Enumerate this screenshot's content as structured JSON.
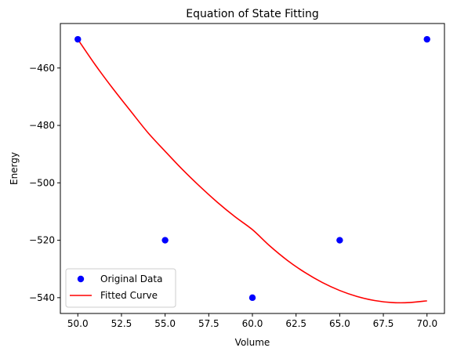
{
  "chart_data": {
    "type": "scatter",
    "title": "Equation of State Fitting",
    "xlabel": "Volume",
    "ylabel": "Energy",
    "xlim": [
      49.0,
      71.0
    ],
    "ylim": [
      -545.5,
      -444.5
    ],
    "xticks": [
      50.0,
      52.5,
      55.0,
      57.5,
      60.0,
      62.5,
      65.0,
      67.5,
      70.0
    ],
    "xtick_labels": [
      "50.0",
      "52.5",
      "55.0",
      "57.5",
      "60.0",
      "62.5",
      "65.0",
      "67.5",
      "70.0"
    ],
    "yticks": [
      -460,
      -480,
      -500,
      -520,
      -540
    ],
    "ytick_labels": [
      "−460",
      "−480",
      "−500",
      "−520",
      "−540"
    ],
    "grid": false,
    "legend_position": "lower-left",
    "series": [
      {
        "name": "Original Data",
        "kind": "points",
        "color": "#0000ff",
        "x": [
          50,
          55,
          60,
          65,
          70
        ],
        "y": [
          -450,
          -520,
          -540,
          -520,
          -450
        ]
      },
      {
        "name": "Fitted Curve",
        "kind": "line",
        "color": "#ff0000",
        "x": [
          50,
          51,
          52,
          53,
          54,
          55,
          56,
          57,
          58,
          59,
          60,
          61,
          62,
          63,
          64,
          65,
          66,
          67,
          68,
          69,
          70
        ],
        "y": [
          -450.0,
          -458.9,
          -467.1,
          -474.8,
          -482.4,
          -489.0,
          -495.4,
          -501.3,
          -506.8,
          -511.8,
          -516.3,
          -522.0,
          -527.0,
          -531.2,
          -534.7,
          -537.5,
          -539.6,
          -541.0,
          -541.7,
          -541.7,
          -541.1
        ]
      }
    ]
  }
}
